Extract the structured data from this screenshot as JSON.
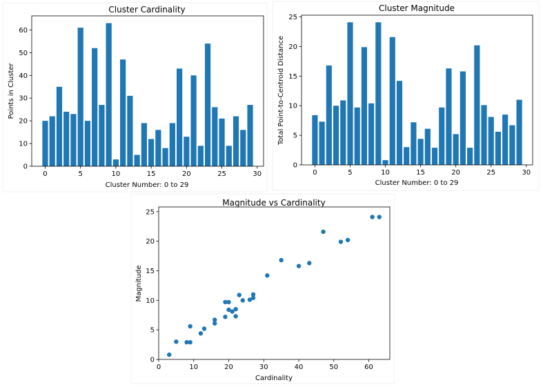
{
  "chart_data": [
    {
      "type": "bar",
      "title": "Cluster Cardinality",
      "xlabel": "Cluster Number: 0 to 29",
      "ylabel": "Points in Cluster",
      "categories": [
        0,
        1,
        2,
        3,
        4,
        5,
        6,
        7,
        8,
        9,
        10,
        11,
        12,
        13,
        14,
        15,
        16,
        17,
        18,
        19,
        20,
        21,
        22,
        23,
        24,
        25,
        26,
        27,
        28,
        29
      ],
      "values": [
        20,
        22,
        35,
        24,
        23,
        61,
        20,
        52,
        27,
        63,
        3,
        47,
        31,
        5,
        19,
        12,
        16,
        8,
        19,
        43,
        13,
        40,
        9,
        54,
        26,
        21,
        9,
        22,
        16,
        27
      ],
      "xlim": [
        -1.9,
        30.9
      ],
      "ylim": [
        0,
        66.2
      ],
      "xticks": [
        0,
        5,
        10,
        15,
        20,
        25,
        30
      ],
      "yticks": [
        0,
        10,
        20,
        30,
        40,
        50,
        60
      ],
      "color": "#1f77b4",
      "grid": false
    },
    {
      "type": "bar",
      "title": "Cluster Magnitude",
      "xlabel": "Cluster Number: 0 to 29",
      "ylabel": "Total Point-to-Centroid Distance",
      "categories": [
        0,
        1,
        2,
        3,
        4,
        5,
        6,
        7,
        8,
        9,
        10,
        11,
        12,
        13,
        14,
        15,
        16,
        17,
        18,
        19,
        20,
        21,
        22,
        23,
        24,
        25,
        26,
        27,
        28,
        29
      ],
      "values": [
        8.4,
        7.3,
        16.8,
        10.0,
        10.9,
        24.1,
        9.7,
        19.9,
        10.4,
        24.1,
        0.8,
        21.6,
        14.2,
        3.0,
        7.2,
        4.4,
        6.1,
        2.9,
        9.7,
        16.3,
        5.2,
        15.8,
        2.9,
        20.2,
        10.1,
        8.1,
        5.6,
        8.5,
        6.7,
        11.0
      ],
      "xlim": [
        -1.9,
        30.9
      ],
      "ylim": [
        0,
        25.3
      ],
      "xticks": [
        0,
        5,
        10,
        15,
        20,
        25,
        30
      ],
      "yticks": [
        0,
        5,
        10,
        15,
        20,
        25
      ],
      "color": "#1f77b4",
      "grid": false
    },
    {
      "type": "scatter",
      "title": "Magnitude vs Cardinality",
      "xlabel": "Cardinality",
      "ylabel": "Magnitude",
      "x": [
        20,
        22,
        35,
        24,
        23,
        61,
        20,
        52,
        27,
        63,
        3,
        47,
        31,
        5,
        19,
        12,
        16,
        8,
        19,
        43,
        13,
        40,
        9,
        54,
        26,
        21,
        9,
        22,
        16,
        27
      ],
      "y": [
        8.4,
        7.3,
        16.8,
        10.0,
        10.9,
        24.1,
        9.7,
        19.9,
        10.4,
        24.1,
        0.8,
        21.6,
        14.2,
        3.0,
        7.2,
        4.4,
        6.1,
        2.9,
        9.7,
        16.3,
        5.2,
        15.8,
        2.9,
        20.2,
        10.1,
        8.1,
        5.6,
        8.5,
        6.7,
        11.0
      ],
      "xlim": [
        0,
        66
      ],
      "ylim": [
        0,
        25.8
      ],
      "xticks": [
        0,
        10,
        20,
        30,
        40,
        50,
        60
      ],
      "yticks": [
        0,
        5,
        10,
        15,
        20,
        25
      ],
      "color": "#1f77b4",
      "grid": false
    }
  ]
}
